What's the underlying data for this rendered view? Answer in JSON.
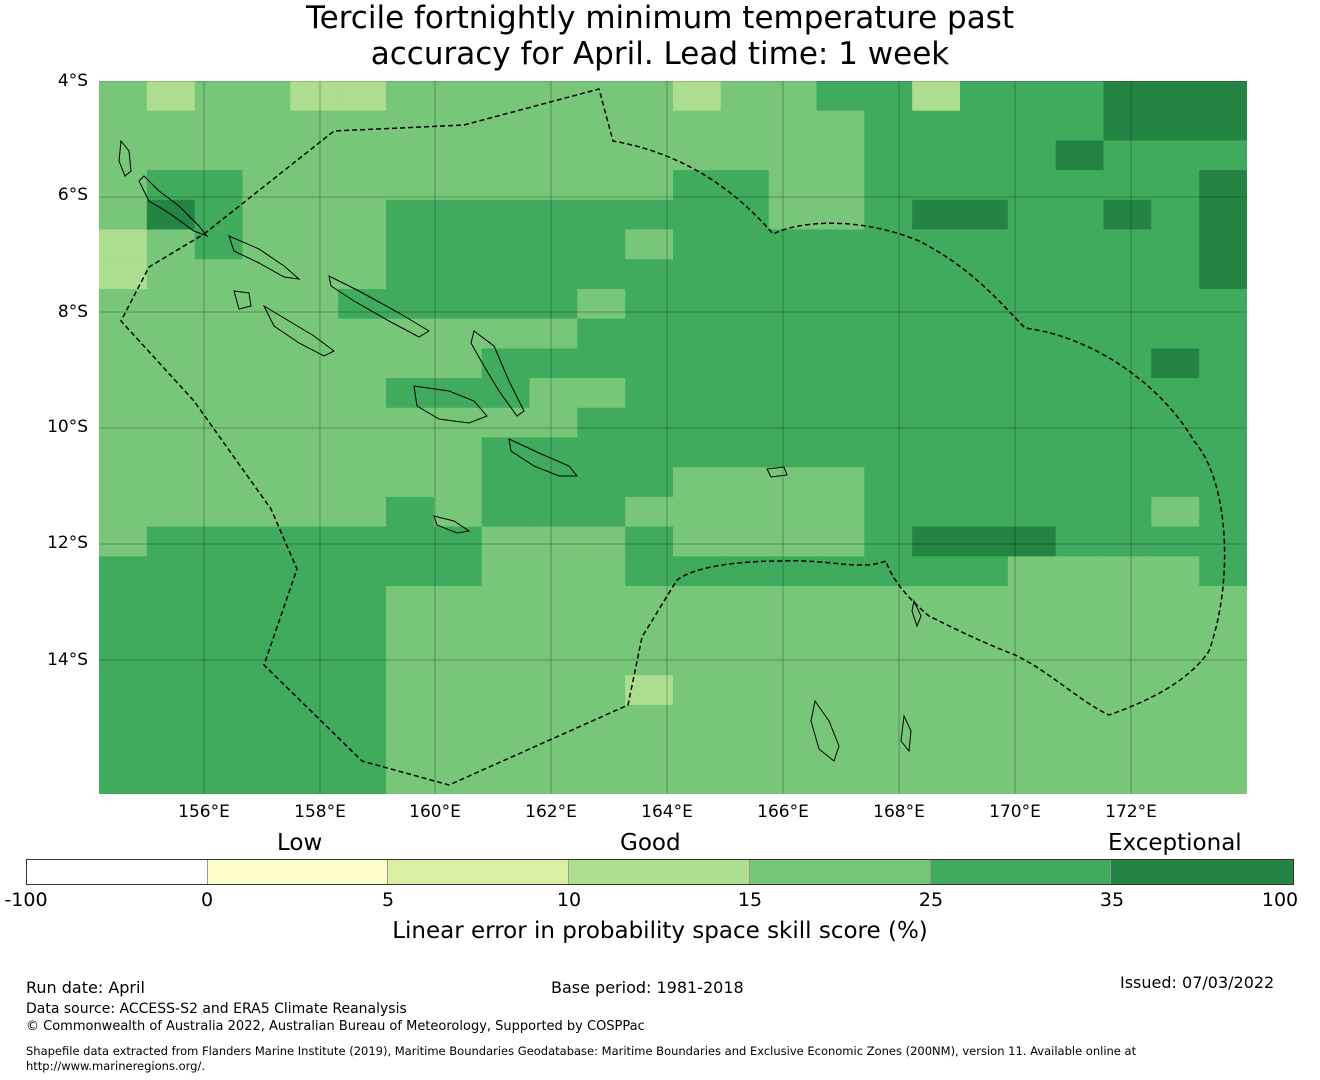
{
  "title": {
    "line1": "Tercile fortnightly minimum temperature past",
    "line2": "accuracy for April. Lead time: 1 week"
  },
  "map": {
    "lat_labels": [
      "4°S",
      "6°S",
      "8°S",
      "10°S",
      "12°S",
      "14°S"
    ],
    "lon_labels": [
      "156°E",
      "158°E",
      "160°E",
      "162°E",
      "164°E",
      "166°E",
      "168°E",
      "170°E",
      "172°E"
    ],
    "cell_grid": {
      "lon_start": 154.2,
      "lat_start": -4.0,
      "step": 0.83,
      "legend_keys": [
        "c0",
        "c5",
        "c10",
        "c15",
        "c25",
        "c35"
      ],
      "rows": [
        "BCBBCCBBBBBBCBBDDCDDDEEE",
        "BBBBBBBBBBBBBBBBDDDDDEEE",
        "BBBBBBBBBBBBBBBBDDDDEDDD",
        "BDDBBBBBBBBBDDBBDDDDDDDE",
        "BEDBBBDDDDDDDDBBDEEDDEDE",
        "CBDBBBDDDDDBDDDDDDDDDDDE",
        "CBBBBBDDDDDDDDDDDDDDDDDE",
        "BBBBBDDDDDBDDDDDDDDDDDDD",
        "BBBBBBBBBBDDDDDDDDDDDDDD",
        "BBBBBBBBDDDDDDDDDDDDDDED",
        "BBBBBBDDDBBDDDDDDDDDDDDD",
        "BBBBBBBBBBDDDDDDDDDDDDDD",
        "BBBBBBBBDDDDDDDDDDDDDDDD",
        "BBBBBBBBDDDDBBBBDDDDDDDD",
        "BBBBBBDBDDDBBBBBDDDDDDBD",
        "BDDDDDDDBBBDBBBBDEEEDDDD",
        "DDDDDDDDBBBDDDDDDDDBBBBD",
        "DDDDDDBBBBBBBBBBBBBBBBBB",
        "DDDDDDBBBBBBBBBBBBBBBBBB",
        "DDDDDDBBBBBBBBBBBBBBBBBB",
        "DDDDDDBBBBBCBBBBBBBBBBBB",
        "DDDDDDBBBBBBBBBBBBBBBBBB",
        "DDDDDDBBBBBBBBBBBBBBBBBB",
        "DDDDDDBBBBBBBBBBBBBBBBBB"
      ]
    }
  },
  "colorbar": {
    "categories": [
      "Low",
      "Good",
      "Exceptional"
    ],
    "ticks": [
      "-100",
      "0",
      "5",
      "10",
      "15",
      "25",
      "35",
      "100"
    ],
    "colors": [
      "#ffffff",
      "#ffffcc",
      "#d9f0a3",
      "#addd8e",
      "#78c679",
      "#41ab5d",
      "#238443"
    ],
    "title": "Linear error in probability space skill score (%)"
  },
  "footer": {
    "run_date": "Run date: April",
    "base_period": "Base period: 1981-2018",
    "issued": "Issued: 07/03/2022",
    "data_source": "Data source: ACCESS-S2 and ERA5 Climate Reanalysis",
    "copyright": "© Commonwealth of Australia 2022, Australian Bureau of Meteorology, Supported by COSPPac",
    "shapefile_line1": "Shapefile data extracted from Flanders Marine Institute (2019), Maritime Boundaries Geodatabase: Maritime Boundaries and Exclusive Economic Zones (200NM), version 11. Available online at",
    "shapefile_line2": "http://www.marineregions.org/."
  }
}
